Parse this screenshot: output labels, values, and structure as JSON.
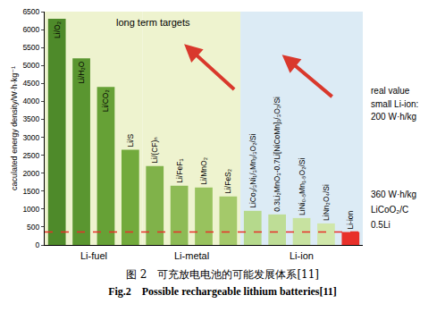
{
  "chart_data": {
    "type": "bar",
    "y_label": "caculated energy density/W·h·kg⁻¹",
    "categories": [
      "Li/O₂",
      "Li/H₂O",
      "Li/CO₂",
      "Li/S",
      "Li/(CF)ₙ",
      "Li/FeF₃",
      "Li/MnO₂",
      "Li/FeS₂",
      "LiCo₁/₃Ni₁/₃Mn₁/₃O₂/Si",
      "0.3Li₂MnO₃-0.7Li[NiCoMn]₁/₃O₂/Si",
      "LiNi₀.₅Mn₁.₅O₂/Si",
      "LiNn₂O₄/Si",
      "Li-ion"
    ],
    "values": [
      6300,
      5200,
      4400,
      2650,
      2200,
      1650,
      1600,
      1350,
      950,
      850,
      750,
      600,
      360
    ],
    "colors": [
      "#4e8a2a",
      "#5a9630",
      "#66a136",
      "#72aa3c",
      "#80b24a",
      "#8dbb55",
      "#98c25e",
      "#a4c96a",
      "#b5d98c",
      "#bedd96",
      "#c7e2a0",
      "#d0e7aa",
      "#e8302a"
    ],
    "category_groups": [
      "Li-fuel",
      "Li-fuel",
      "Li-fuel",
      "Li-fuel",
      "Li-metal",
      "Li-metal",
      "Li-metal",
      "Li-metal",
      "Li-ion",
      "Li-ion",
      "Li-ion",
      "Li-ion",
      "Li-ion"
    ],
    "groups": [
      {
        "label": "Li-fuel",
        "color": "#eef3cf"
      },
      {
        "label": "Li-metal",
        "color": "#eef3cf"
      },
      {
        "label": "Li-ion",
        "color": "#dcebf5"
      }
    ],
    "ylim": [
      0,
      6500
    ],
    "yticks": [
      0,
      500,
      1000,
      1500,
      2000,
      2500,
      3000,
      3500,
      4000,
      4500,
      5000,
      5500,
      6000,
      6500
    ],
    "tick_labels": "y",
    "grid": false,
    "reference_line": 360,
    "annotations": [
      "long term targets"
    ],
    "side_notes": [
      [
        "real value",
        "small Li-ion:",
        "200 W·h/kg"
      ],
      [
        "360 W·h/kg",
        "LiCoO₂/C",
        "0.5Li"
      ]
    ],
    "caption": [
      "图 2　可充放电电池的可能发展体系[11]",
      "Fig.2　Possible rechargeable lithium batteries[11]"
    ]
  }
}
